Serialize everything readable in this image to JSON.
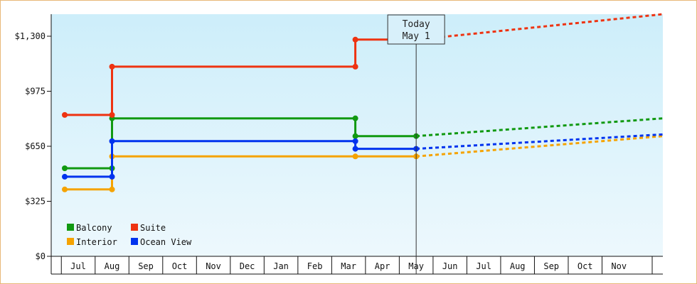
{
  "chart_data": {
    "type": "line",
    "title": "",
    "xlabel": "",
    "ylabel": "",
    "ylim": [
      0,
      1430
    ],
    "y_ticks": [
      {
        "value": 0,
        "label": "$0"
      },
      {
        "value": 325,
        "label": "$325"
      },
      {
        "value": 650,
        "label": "$650"
      },
      {
        "value": 975,
        "label": "$975"
      },
      {
        "value": 1300,
        "label": "$1,300"
      }
    ],
    "x_months": [
      "Jul",
      "Aug",
      "Sep",
      "Oct",
      "Nov",
      "Dec",
      "Jan",
      "Feb",
      "Mar",
      "Apr",
      "May",
      "Jun",
      "Jul",
      "Aug",
      "Sep",
      "Oct",
      "Nov"
    ],
    "x_range": [
      -0.4,
      17.3
    ],
    "today": {
      "line1": "Today",
      "line2": "May 1",
      "x": 10.0
    },
    "grid": false,
    "legend_position": "bottom-left",
    "series": [
      {
        "name": "Balcony",
        "color": "#119911",
        "points": [
          [
            -0.4,
            520
          ],
          [
            1.0,
            520
          ],
          [
            1.0,
            815
          ],
          [
            8.2,
            815
          ],
          [
            8.2,
            710
          ],
          [
            10.0,
            710
          ]
        ],
        "markers": [
          [
            -0.4,
            520
          ],
          [
            1.0,
            520
          ],
          [
            1.0,
            815
          ],
          [
            8.2,
            815
          ],
          [
            8.2,
            710
          ],
          [
            10.0,
            710
          ]
        ],
        "forecast": [
          [
            10.0,
            710
          ],
          [
            17.3,
            815
          ]
        ]
      },
      {
        "name": "Suite",
        "color": "#ee3311",
        "points": [
          [
            -0.4,
            835
          ],
          [
            1.0,
            835
          ],
          [
            1.0,
            1120
          ],
          [
            8.2,
            1120
          ],
          [
            8.2,
            1280
          ],
          [
            10.0,
            1280
          ]
        ],
        "markers": [
          [
            -0.4,
            835
          ],
          [
            1.0,
            835
          ],
          [
            1.0,
            1120
          ],
          [
            8.2,
            1120
          ],
          [
            8.2,
            1280
          ],
          [
            10.0,
            1280
          ]
        ],
        "forecast": [
          [
            10.0,
            1280
          ],
          [
            17.3,
            1430
          ]
        ]
      },
      {
        "name": "Interior",
        "color": "#f5a300",
        "points": [
          [
            -0.4,
            395
          ],
          [
            1.0,
            395
          ],
          [
            1.0,
            590
          ],
          [
            8.2,
            590
          ],
          [
            10.0,
            590
          ]
        ],
        "markers": [
          [
            -0.4,
            395
          ],
          [
            1.0,
            395
          ],
          [
            1.0,
            590
          ],
          [
            8.2,
            590
          ],
          [
            10.0,
            590
          ]
        ],
        "forecast": [
          [
            10.0,
            590
          ],
          [
            17.3,
            710
          ]
        ]
      },
      {
        "name": "Ocean View",
        "color": "#0033ee",
        "points": [
          [
            -0.4,
            470
          ],
          [
            1.0,
            470
          ],
          [
            1.0,
            680
          ],
          [
            8.2,
            680
          ],
          [
            8.2,
            635
          ],
          [
            10.0,
            635
          ]
        ],
        "markers": [
          [
            -0.4,
            470
          ],
          [
            1.0,
            470
          ],
          [
            1.0,
            680
          ],
          [
            8.2,
            680
          ],
          [
            8.2,
            635
          ],
          [
            10.0,
            635
          ]
        ],
        "forecast": [
          [
            10.0,
            635
          ],
          [
            17.3,
            720
          ]
        ]
      }
    ],
    "legend_order": [
      "Balcony",
      "Suite",
      "Interior",
      "Ocean View"
    ]
  }
}
